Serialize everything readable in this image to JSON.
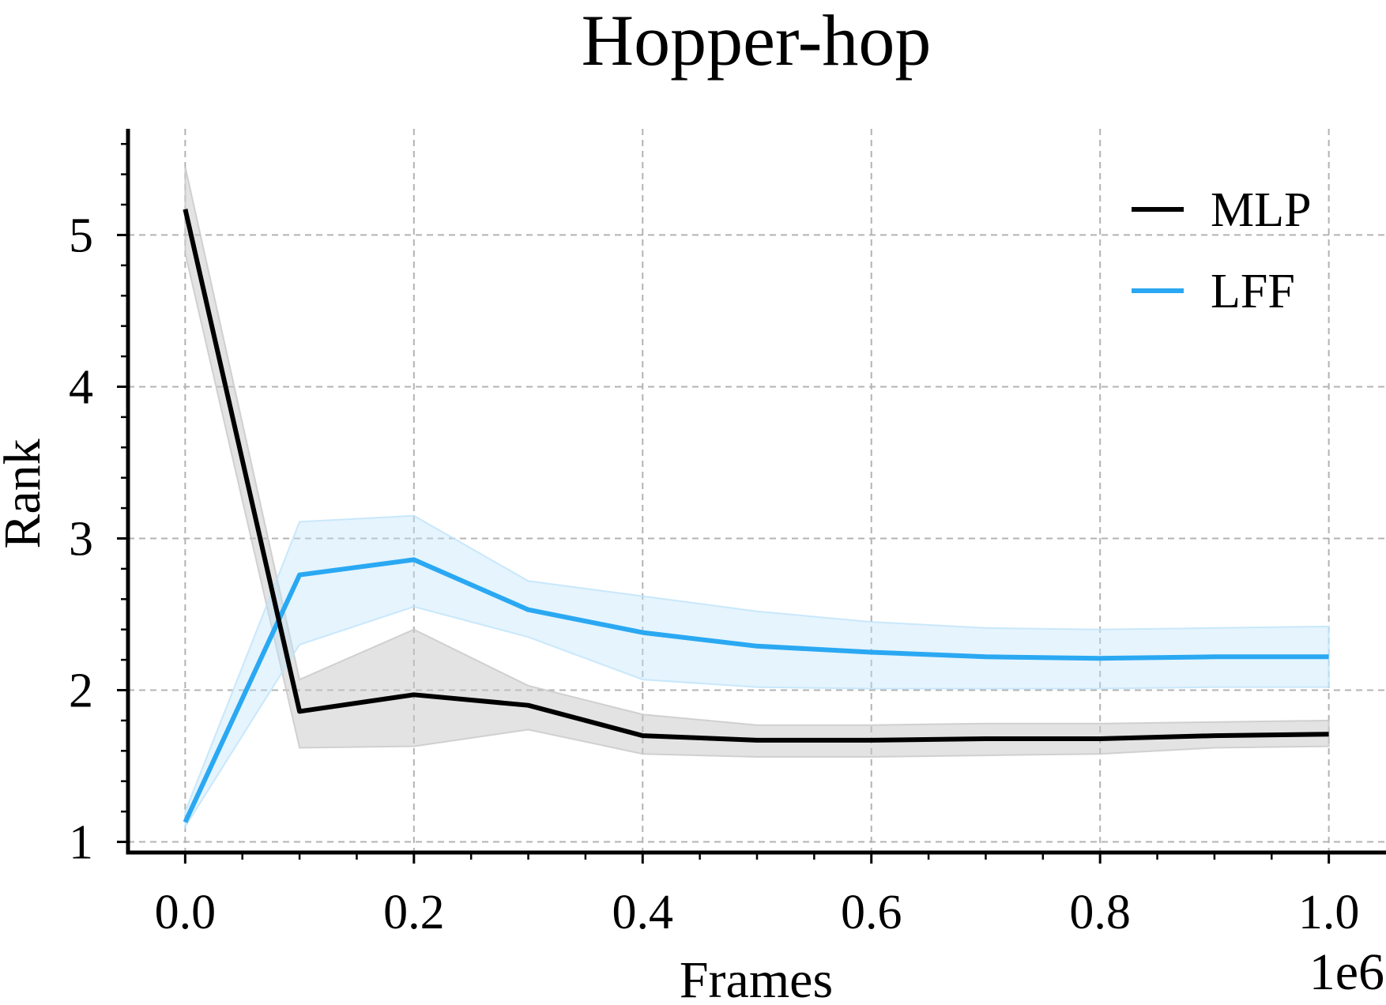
{
  "chart_data": {
    "type": "line",
    "title": "Hopper-hop",
    "xlabel": "Frames",
    "ylabel": "Rank",
    "x_offset_label": "1e6",
    "x": [
      0.0,
      0.1,
      0.2,
      0.3,
      0.4,
      0.5,
      0.6,
      0.7,
      0.8,
      0.9,
      1.0
    ],
    "xlim": [
      -0.05,
      1.05
    ],
    "ylim": [
      0.93,
      5.7
    ],
    "x_ticks": [
      0.0,
      0.2,
      0.4,
      0.6,
      0.8,
      1.0
    ],
    "x_tick_labels": [
      "0.0",
      "0.2",
      "0.4",
      "0.6",
      "0.8",
      "1.0"
    ],
    "y_ticks": [
      1,
      2,
      3,
      4,
      5
    ],
    "y_tick_labels": [
      "1",
      "2",
      "3",
      "4",
      "5"
    ],
    "grid": true,
    "legend_position": "top-right",
    "series": [
      {
        "name": "MLP",
        "color": "#000000",
        "band_color": "#c8c8c8",
        "values": [
          5.17,
          1.86,
          1.97,
          1.9,
          1.7,
          1.67,
          1.67,
          1.68,
          1.68,
          1.7,
          1.71
        ],
        "lower": [
          4.88,
          1.62,
          1.63,
          1.74,
          1.58,
          1.56,
          1.56,
          1.57,
          1.58,
          1.62,
          1.63
        ],
        "upper": [
          5.45,
          2.07,
          2.4,
          2.03,
          1.84,
          1.77,
          1.77,
          1.78,
          1.78,
          1.79,
          1.8
        ]
      },
      {
        "name": "LFF",
        "color": "#2aa8f2",
        "band_color": "#bfe3fa",
        "values": [
          1.13,
          2.76,
          2.86,
          2.53,
          2.38,
          2.29,
          2.25,
          2.22,
          2.21,
          2.22,
          2.22
        ],
        "lower": [
          1.1,
          2.3,
          2.55,
          2.35,
          2.07,
          2.02,
          2.01,
          2.01,
          2.01,
          2.02,
          2.02
        ],
        "upper": [
          1.2,
          3.11,
          3.15,
          2.72,
          2.62,
          2.52,
          2.45,
          2.41,
          2.4,
          2.41,
          2.42
        ]
      }
    ]
  }
}
